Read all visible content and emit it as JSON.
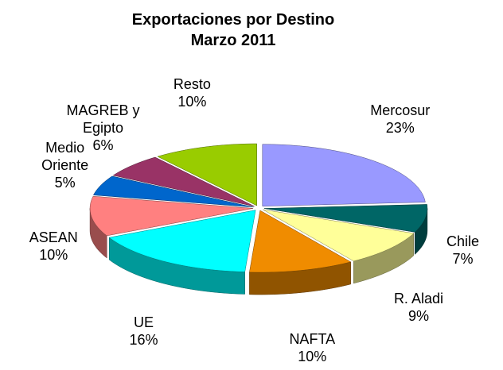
{
  "chart_data": {
    "type": "pie3d",
    "title": "Exportaciones por Destino",
    "subtitle": "Marzo 2011",
    "categories": [
      "Mercosur",
      "Chile",
      "R. Aladi",
      "NAFTA",
      "UE",
      "ASEAN",
      "Medio Oriente",
      "MAGREB y Egipto",
      "Resto"
    ],
    "values": [
      23,
      7,
      9,
      10,
      16,
      10,
      5,
      6,
      10
    ],
    "value_labels": [
      "23%",
      "7%",
      "9%",
      "10%",
      "16%",
      "10%",
      "5%",
      "6%",
      "10%"
    ],
    "colors": [
      "#9999ff",
      "#006666",
      "#ffff99",
      "#f08c00",
      "#00ffff",
      "#ff8080",
      "#0066cc",
      "#993366",
      "#99cc00"
    ]
  }
}
